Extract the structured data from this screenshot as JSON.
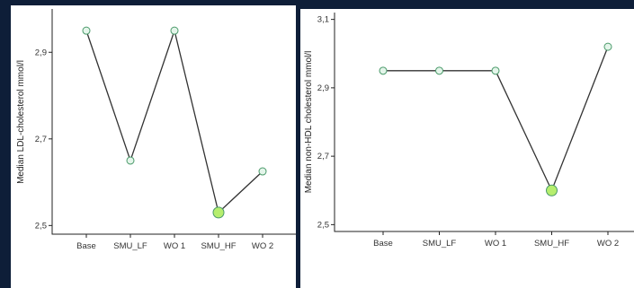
{
  "colors": {
    "background": "#0e1e38",
    "panel": "#ffffff",
    "line": "#333333",
    "marker_fill": "#e4f5ea",
    "marker_highlight": "#b6ee6e",
    "marker_stroke": "#4a9a6a"
  },
  "chart_data": [
    {
      "type": "line",
      "title": "",
      "xlabel": "",
      "ylabel": "Median LDL-cholesterol mmol/l",
      "categories": [
        "Base",
        "SMU_LF",
        "WO 1",
        "SMU_HF",
        "WO 2"
      ],
      "ylim": [
        2.48,
        3.0
      ],
      "yticks": [
        2.5,
        2.7,
        2.9
      ],
      "ytick_labels": [
        "2,5",
        "2,7",
        "2,9"
      ],
      "grid": false,
      "series": [
        {
          "values": [
            2.95,
            2.65,
            2.95,
            2.53,
            2.625
          ],
          "highlight": [
            false,
            false,
            false,
            true,
            false
          ]
        }
      ]
    },
    {
      "type": "line",
      "title": "",
      "xlabel": "",
      "ylabel": "Median non-HDL cholesterol mmol/l",
      "categories": [
        "Base",
        "SMU_LF",
        "WO 1",
        "SMU_HF",
        "WO 2"
      ],
      "ylim": [
        2.48,
        3.12
      ],
      "yticks": [
        2.5,
        2.7,
        2.9,
        3.1
      ],
      "ytick_labels": [
        "2,5",
        "2,7",
        "2,9",
        "3,1"
      ],
      "grid": false,
      "series": [
        {
          "values": [
            2.95,
            2.95,
            2.95,
            2.6,
            3.02
          ],
          "highlight": [
            false,
            false,
            false,
            true,
            false
          ]
        }
      ]
    }
  ]
}
